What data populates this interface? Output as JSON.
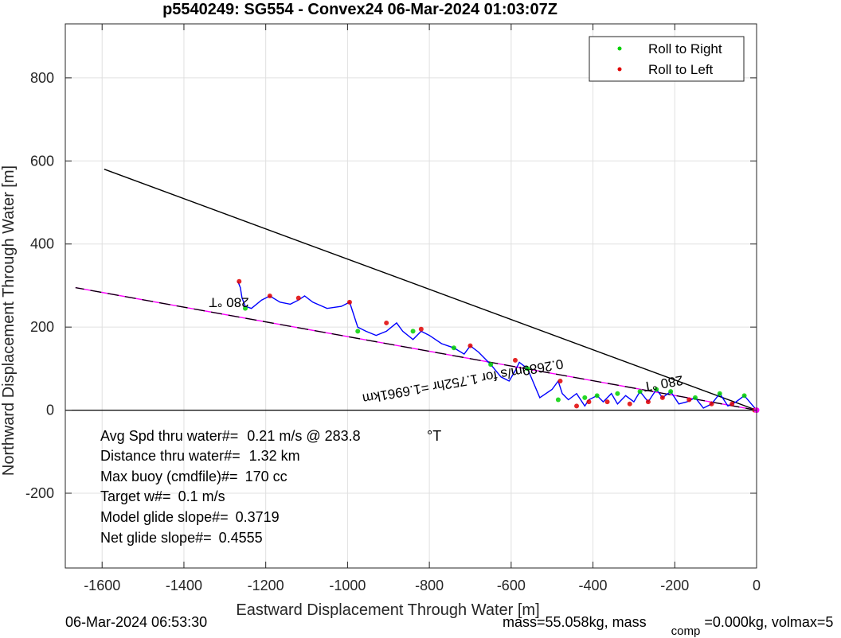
{
  "chart_data": {
    "type": "line",
    "title": "p5540249: SG554 - Convex24 06-Mar-2024 01:03:07Z",
    "xlabel": "Eastward Displacement Through Water [m]",
    "ylabel": "Northward Displacement Through Water [m]",
    "xlim": [
      -1690,
      0
    ],
    "ylim": [
      -380,
      930
    ],
    "xticks": [
      -1600,
      -1400,
      -1200,
      -1000,
      -800,
      -600,
      -400,
      -200,
      0
    ],
    "yticks": [
      -200,
      0,
      200,
      400,
      600,
      800
    ],
    "grid": true,
    "legend_position": "top-right",
    "legend": [
      {
        "label": "Roll to Right",
        "color": "#00d000"
      },
      {
        "label": "Roll to Left",
        "color": "#e00000"
      }
    ],
    "series": [
      {
        "type": "line",
        "color": "#000000",
        "x": [
          0,
          -1595
        ],
        "y": [
          0,
          580
        ]
      },
      {
        "type": "line",
        "color": "#ff00ff",
        "x": [
          0,
          -1665
        ],
        "y": [
          0,
          295
        ]
      },
      {
        "type": "line",
        "color": "#000000",
        "dash": true,
        "x": [
          0,
          -1665
        ],
        "y": [
          0,
          295
        ]
      },
      {
        "type": "line",
        "color": "#0000ff",
        "x": [
          0,
          -30,
          -50,
          -70,
          -90,
          -110,
          -130,
          -150,
          -170,
          -190,
          -210,
          -230,
          -245,
          -265,
          -285,
          -300,
          -320,
          -340,
          -355,
          -375,
          -390,
          -410,
          -420,
          -440,
          -460,
          -475,
          -485,
          -500,
          -530,
          -560,
          -580,
          -590,
          -605,
          -625,
          -650,
          -680,
          -700,
          -715,
          -740,
          -770,
          -800,
          -820,
          -840,
          -865,
          -880,
          -905,
          -930,
          -955,
          -975,
          -985,
          -995,
          -1015,
          -1050,
          -1085,
          -1105,
          -1120,
          -1140,
          -1165,
          -1190,
          -1210,
          -1235,
          -1250,
          -1258,
          -1262,
          -1268
        ],
        "y": [
          0,
          35,
          20,
          10,
          40,
          15,
          5,
          30,
          20,
          15,
          45,
          30,
          50,
          20,
          45,
          20,
          35,
          15,
          40,
          20,
          35,
          25,
          10,
          40,
          25,
          40,
          70,
          50,
          30,
          100,
          115,
          95,
          70,
          80,
          110,
          140,
          155,
          135,
          150,
          160,
          180,
          190,
          170,
          190,
          210,
          190,
          180,
          190,
          200,
          230,
          260,
          250,
          245,
          260,
          275,
          265,
          255,
          260,
          275,
          265,
          245,
          250,
          270,
          295,
          310
        ]
      },
      {
        "type": "scatter",
        "name": "Roll to Right",
        "color": "#00d000",
        "x": [
          -30,
          -90,
          -150,
          -210,
          -245,
          -285,
          -340,
          -390,
          -420,
          -485,
          -560,
          -650,
          -740,
          -840,
          -975,
          -1250
        ],
        "y": [
          35,
          40,
          30,
          45,
          50,
          45,
          40,
          35,
          30,
          25,
          100,
          110,
          150,
          190,
          190,
          245
        ]
      },
      {
        "type": "scatter",
        "name": "Roll to Left",
        "color": "#e00000",
        "x": [
          -5,
          -60,
          -110,
          -165,
          -230,
          -265,
          -310,
          -365,
          -410,
          -440,
          -480,
          -590,
          -700,
          -820,
          -905,
          -995,
          -1120,
          -1190,
          -1265
        ],
        "y": [
          0,
          15,
          15,
          25,
          30,
          20,
          15,
          20,
          20,
          10,
          70,
          120,
          155,
          195,
          210,
          260,
          270,
          275,
          310
        ]
      },
      {
        "type": "point",
        "color": "#ff00ff",
        "x": [
          0
        ],
        "y": [
          0
        ]
      }
    ],
    "annotations": [
      {
        "text": "280 °T",
        "x": -1290,
        "y": 270,
        "rotation": 180
      },
      {
        "text": "280 °T",
        "x": -230,
        "y": 75,
        "rotation": 170
      },
      {
        "text": "0.2689m/s for 1.752hr =1.6961km",
        "x": -720,
        "y": 80,
        "rotation": 170
      }
    ],
    "stats": [
      {
        "label": "Avg Spd thru water#=",
        "value": "0.21 m/s @ 283.8",
        "unit": "°T"
      },
      {
        "label": "Distance thru water#=",
        "value": "1.32 km"
      },
      {
        "label": "Max buoy (cmdfile)#=",
        "value": "170 cc"
      },
      {
        "label": "Target w#=",
        "value": "0.1 m/s"
      },
      {
        "label": "Model glide slope#=",
        "value": "0.3719"
      },
      {
        "label": "Net glide slope#=",
        "value": "0.4555"
      }
    ]
  },
  "footer": {
    "timestamp": "06-Mar-2024 06:53:30",
    "mass_prefix": "mass=55.058kg, mass",
    "mass_sub": "comp",
    "mass_suffix": "=0.000kg, volmax=5"
  }
}
